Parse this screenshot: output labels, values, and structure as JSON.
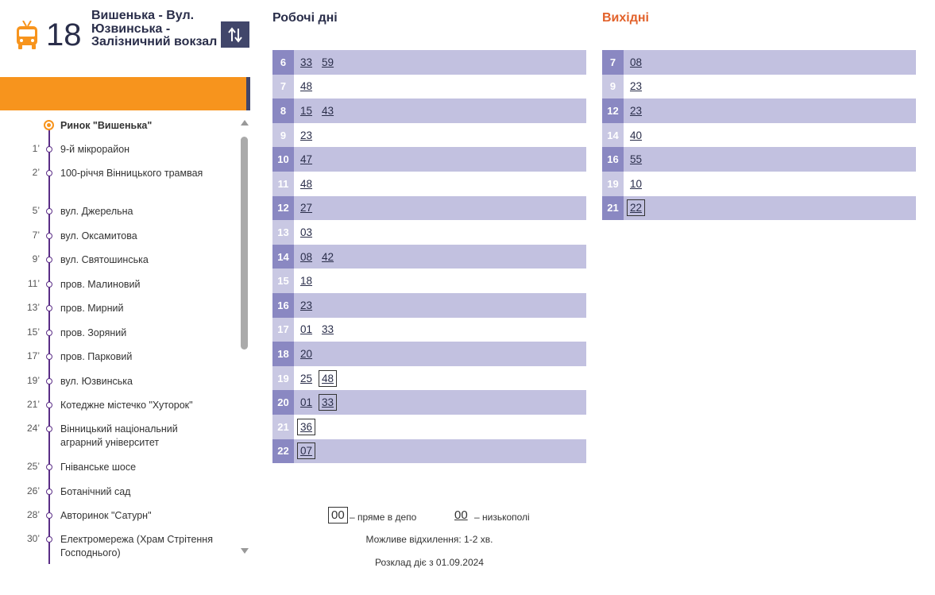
{
  "header": {
    "route_number": "18",
    "route_name": "Вишенька - Вул. Юзвинська - Залізничний вокзал",
    "icon": "trolleybus-icon",
    "swap_icon": "swap-direction-icon"
  },
  "stops": [
    {
      "time": "",
      "name": "Ринок \"Вишенька\""
    },
    {
      "time": "1’",
      "name": "9-й мікрорайон"
    },
    {
      "time": "2’",
      "name": "100-річчя Вінницького трамвая"
    },
    {
      "time": "5’",
      "name": "вул. Джерельна"
    },
    {
      "time": "7’",
      "name": "вул. Оксамитова"
    },
    {
      "time": "9’",
      "name": "вул. Святошинська"
    },
    {
      "time": "11’",
      "name": "пров. Малиновий"
    },
    {
      "time": "13’",
      "name": "пров. Мирний"
    },
    {
      "time": "15’",
      "name": "пров. Зоряний"
    },
    {
      "time": "17’",
      "name": "пров. Парковий"
    },
    {
      "time": "19’",
      "name": "вул. Юзвинська"
    },
    {
      "time": "21’",
      "name": "Котеджне містечко \"Хуторок\""
    },
    {
      "time": "24’",
      "name": "Вінницький національний аграрний університет"
    },
    {
      "time": "25’",
      "name": "Гніванське шосе"
    },
    {
      "time": "26’",
      "name": "Ботанічний сад"
    },
    {
      "time": "28’",
      "name": "Авторинок \"Сатурн\""
    },
    {
      "time": "30’",
      "name": "Електромережа (Храм Стрітення Господнього)"
    }
  ],
  "weekday": {
    "title": "Робочі дні",
    "rows": [
      {
        "hour": "6",
        "shaded": true,
        "mins": [
          {
            "m": "33"
          },
          {
            "m": "59"
          }
        ]
      },
      {
        "hour": "7",
        "shaded": false,
        "mins": [
          {
            "m": "48"
          }
        ]
      },
      {
        "hour": "8",
        "shaded": true,
        "mins": [
          {
            "m": "15"
          },
          {
            "m": "43"
          }
        ]
      },
      {
        "hour": "9",
        "shaded": false,
        "mins": [
          {
            "m": "23"
          }
        ]
      },
      {
        "hour": "10",
        "shaded": true,
        "mins": [
          {
            "m": "47"
          }
        ]
      },
      {
        "hour": "11",
        "shaded": false,
        "mins": [
          {
            "m": "48"
          }
        ]
      },
      {
        "hour": "12",
        "shaded": true,
        "mins": [
          {
            "m": "27"
          }
        ]
      },
      {
        "hour": "13",
        "shaded": false,
        "mins": [
          {
            "m": "03"
          }
        ]
      },
      {
        "hour": "14",
        "shaded": true,
        "mins": [
          {
            "m": "08"
          },
          {
            "m": "42"
          }
        ]
      },
      {
        "hour": "15",
        "shaded": false,
        "mins": [
          {
            "m": "18"
          }
        ]
      },
      {
        "hour": "16",
        "shaded": true,
        "mins": [
          {
            "m": "23"
          }
        ]
      },
      {
        "hour": "17",
        "shaded": false,
        "mins": [
          {
            "m": "01"
          },
          {
            "m": "33"
          }
        ]
      },
      {
        "hour": "18",
        "shaded": true,
        "mins": [
          {
            "m": "20"
          }
        ]
      },
      {
        "hour": "19",
        "shaded": false,
        "mins": [
          {
            "m": "25"
          },
          {
            "m": "48",
            "depot": true
          }
        ]
      },
      {
        "hour": "20",
        "shaded": true,
        "mins": [
          {
            "m": "01"
          },
          {
            "m": "33",
            "depot": true
          }
        ]
      },
      {
        "hour": "21",
        "shaded": false,
        "mins": [
          {
            "m": "36",
            "depot": true
          }
        ]
      },
      {
        "hour": "22",
        "shaded": true,
        "mins": [
          {
            "m": "07",
            "depot": true
          }
        ]
      }
    ]
  },
  "weekend": {
    "title": "Вихідні",
    "rows": [
      {
        "hour": "7",
        "shaded": true,
        "mins": [
          {
            "m": "08"
          }
        ]
      },
      {
        "hour": "9",
        "shaded": false,
        "mins": [
          {
            "m": "23"
          }
        ]
      },
      {
        "hour": "12",
        "shaded": true,
        "mins": [
          {
            "m": "23"
          }
        ]
      },
      {
        "hour": "14",
        "shaded": false,
        "mins": [
          {
            "m": "40"
          }
        ]
      },
      {
        "hour": "16",
        "shaded": true,
        "mins": [
          {
            "m": "55"
          }
        ]
      },
      {
        "hour": "19",
        "shaded": false,
        "mins": [
          {
            "m": "10"
          }
        ]
      },
      {
        "hour": "21",
        "shaded": true,
        "mins": [
          {
            "m": "22",
            "depot": true
          }
        ]
      }
    ]
  },
  "legend": {
    "depot_sample": "00",
    "depot_text": "– пряме в депо",
    "lowfloor_sample": "00",
    "lowfloor_text": "– низькополі",
    "deviation": "Можливе відхилення: 1-2 хв.",
    "valid_from": "Розклад діє з 01.09.2024"
  },
  "colors": {
    "accent_orange": "#f7941d",
    "header_navy": "#41466a",
    "row_shaded": "#c2c1e0",
    "hour_dark": "#8a88c2",
    "weekend_title": "#e2622b",
    "route_line": "#5a2d86"
  }
}
